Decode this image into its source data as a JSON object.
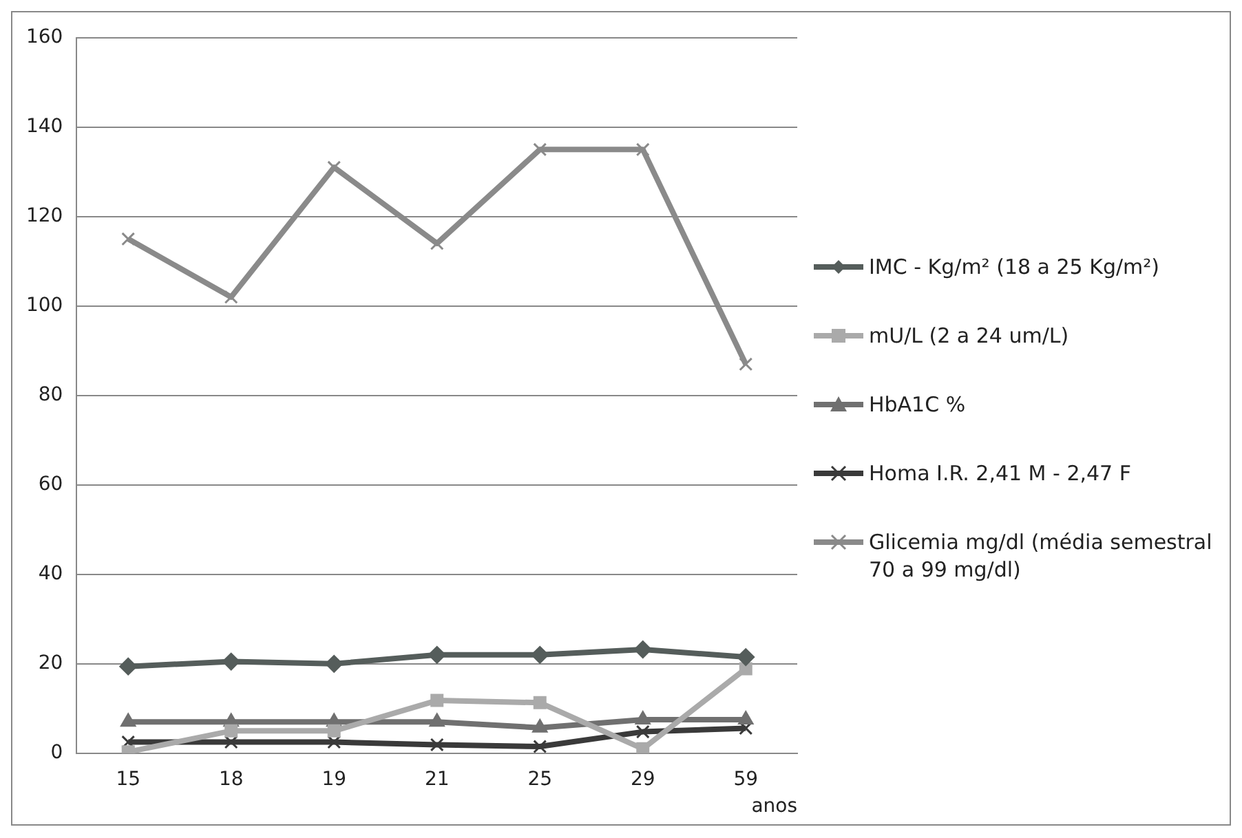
{
  "chart_data": {
    "type": "line",
    "xlabel": "anos",
    "categories": [
      "15",
      "18",
      "19",
      "21",
      "25",
      "29",
      "59"
    ],
    "ylim": [
      0,
      160
    ],
    "yticks": [
      0,
      20,
      40,
      60,
      80,
      100,
      120,
      140,
      160
    ],
    "grid": "y",
    "legend": "right",
    "line_style": "solid",
    "series": [
      {
        "name": "IMC - Kg/m² (18 a 25 Kg/m²)",
        "color": "#555d5b",
        "marker": "diamond",
        "values": [
          19.4,
          20.5,
          20,
          22,
          22,
          23.2,
          21.5
        ]
      },
      {
        "name": "mU/L (2 a 24 um/L)",
        "color": "#aaaaaa",
        "marker": "square",
        "values": [
          0.3,
          5,
          5,
          11.8,
          11.3,
          1,
          18.9
        ]
      },
      {
        "name": "HbA1C %",
        "color": "#707070",
        "marker": "triangle",
        "values": [
          7,
          7,
          7,
          7,
          5.7,
          7.5,
          7.5
        ]
      },
      {
        "name": "Homa I.R. 2,41 M - 2,47 F",
        "color": "#3a3a3a",
        "marker": "cross",
        "values": [
          2.5,
          2.5,
          2.5,
          1.9,
          1.5,
          4.8,
          5.6
        ]
      },
      {
        "name": "Glicemia mg/dl (média semestral 70 a 99 mg/dl)",
        "color": "#8a8a8a",
        "marker": "cross",
        "values": [
          115,
          102,
          131,
          114,
          135,
          135,
          87
        ]
      }
    ]
  }
}
